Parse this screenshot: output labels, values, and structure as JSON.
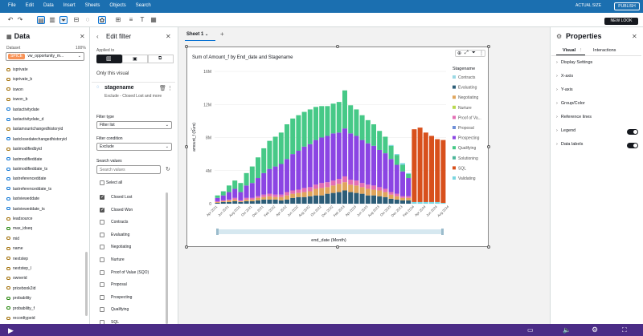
{
  "menu": [
    "File",
    "Edit",
    "Data",
    "Insert",
    "Sheets",
    "Objects",
    "Search"
  ],
  "topbar": {
    "actual_size": "ACTUAL SIZE",
    "publish": "PUBLISH",
    "new_look": "NEW LOOK"
  },
  "data_pane": {
    "title": "Data",
    "dataset_label": "Dataset",
    "dataset_pct": "100%",
    "dataset_chip": "SPICE",
    "dataset_name": "vw_opportunity_m...",
    "fields": [
      "isprivate",
      "isprivate_b",
      "iswon",
      "iswon_b",
      "lastactivitydate",
      "lastactivitydate_d",
      "lastamountchangedhistoryid",
      "lastclosedatechangedhistoryid",
      "lastmodifiedbyid",
      "lastmodifieddate",
      "lastmodifieddate_ts",
      "lastreferenceddate",
      "lastreferenceddate_ts",
      "lastvieweddate",
      "lastvieweddate_ts",
      "leadsource",
      "max_idseq",
      "mid",
      "name",
      "nextstep",
      "nextstep_l",
      "ownerid",
      "pricebook2id",
      "probability",
      "probability_f",
      "recordtypeid"
    ]
  },
  "filter_pane": {
    "title": "Edit filter",
    "applied_to": "Applied to",
    "only_visual": "Only this visual",
    "filter_field": "stagename",
    "filter_desc": "Exclude - Closed Lost and more",
    "filter_type_label": "Filter type",
    "filter_type": "Filter list",
    "filter_condition_label": "Filter condition",
    "filter_condition": "Exclude",
    "search_values_label": "Search values",
    "search_placeholder": "Search values",
    "select_all": "Select all",
    "values": [
      {
        "label": "Closed Lost",
        "checked": true
      },
      {
        "label": "Closed Won",
        "checked": true
      },
      {
        "label": "Contracts",
        "checked": false
      },
      {
        "label": "Evaluating",
        "checked": false
      },
      {
        "label": "Negotiating",
        "checked": false
      },
      {
        "label": "Nurture",
        "checked": false
      },
      {
        "label": "Proof of Value (SQO)",
        "checked": false
      },
      {
        "label": "Proposal",
        "checked": false
      },
      {
        "label": "Prospecting",
        "checked": false
      },
      {
        "label": "Qualifying",
        "checked": false
      },
      {
        "label": "SQL",
        "checked": false
      }
    ]
  },
  "sheet": {
    "tab": "Sheet 1",
    "add": "+"
  },
  "properties": {
    "title": "Properties",
    "tabs": [
      "Visual",
      "Interactions"
    ],
    "sections": [
      "Display Settings",
      "X-axis",
      "Y-axis",
      "Group/Color",
      "Reference lines",
      "Legend",
      "Data labels"
    ]
  },
  "colors": {
    "Contracts": "#9ad8e4",
    "Evaluating": "#2c5d78",
    "Negotiating": "#e0a55c",
    "Nurture": "#b9d84e",
    "Proof of Value (SQO)": "#e36eb4",
    "Proposal": "#6f8fd8",
    "Prospecting": "#8b45e3",
    "Qualifying": "#46c987",
    "SQL": "#d8501c",
    "Validating": "#7ad6e0"
  },
  "chart_data": {
    "type": "bar",
    "stacked": true,
    "title": "Sum of Amount_f by End_date and Stagename",
    "xlabel": "end_date (Month)",
    "ylabel": "amount_f (Sum)",
    "ylim": [
      0,
      16000000
    ],
    "yticks": [
      "0",
      "4M",
      "8M",
      "12M",
      "16M"
    ],
    "legend_title": "Stagename",
    "legend": [
      "Contracts",
      "Evaluating",
      "Negotiating",
      "Nurture",
      "Proof of Va...",
      "Proposal",
      "Prospecting",
      "Qualifying",
      "Solutioning",
      "SQL",
      "Validating"
    ],
    "xtick_labels": [
      "Apr 2021",
      "Jun 2021",
      "Aug 2021",
      "Oct 2021",
      "Dec 2021",
      "Feb 2022",
      "Apr 2022",
      "Jun 2022",
      "Aug 2022",
      "Oct 2022",
      "Dec 2022",
      "Feb 2023",
      "Apr 2023",
      "Jun 2023",
      "Aug 2023",
      "Oct 2023",
      "Dec 2023",
      "Feb 2024",
      "Apr 2024",
      "Jun 2024",
      "Aug 2024"
    ],
    "series": [
      {
        "name": "Evaluating",
        "values": [
          0.1,
          0.2,
          0.2,
          0.3,
          0.2,
          0.3,
          0.3,
          0.4,
          0.5,
          0.5,
          0.5,
          0.4,
          0.5,
          0.7,
          0.8,
          0.8,
          0.9,
          1.0,
          1.0,
          1.2,
          1.3,
          1.4,
          1.6,
          1.4,
          1.3,
          1.2,
          1.0,
          1.0,
          0.9,
          0.8,
          0.6,
          0.5,
          0.4,
          0.4,
          0,
          0,
          0,
          0,
          0,
          0
        ]
      },
      {
        "name": "Negotiating",
        "values": [
          0.1,
          0.1,
          0.2,
          0.2,
          0.1,
          0.2,
          0.2,
          0.3,
          0.3,
          0.4,
          0.3,
          0.4,
          0.5,
          0.5,
          0.5,
          0.6,
          0.6,
          0.8,
          0.9,
          0.8,
          0.9,
          1.0,
          1.0,
          0.9,
          0.9,
          0.8,
          0.8,
          0.7,
          0.7,
          0.6,
          0.5,
          0.4,
          0.3,
          0.3,
          0,
          0,
          0,
          0,
          0,
          0
        ]
      },
      {
        "name": "Proof of Value (SQO)",
        "values": [
          0.1,
          0.1,
          0.1,
          0.2,
          0.1,
          0.2,
          0.2,
          0.2,
          0.3,
          0.3,
          0.3,
          0.3,
          0.4,
          0.4,
          0.4,
          0.5,
          0.5,
          0.5,
          0.6,
          0.6,
          0.6,
          0.6,
          0.7,
          0.6,
          0.6,
          0.5,
          0.5,
          0.5,
          0.4,
          0.4,
          0.3,
          0.3,
          0.2,
          0.2,
          0,
          0,
          0,
          0,
          0,
          0
        ]
      },
      {
        "name": "Prospecting",
        "values": [
          0.4,
          0.6,
          0.9,
          1.1,
          1.0,
          1.5,
          1.8,
          2.2,
          2.6,
          3.0,
          3.4,
          3.7,
          4.0,
          4.4,
          4.7,
          5.0,
          5.2,
          5.4,
          5.5,
          5.6,
          5.7,
          5.6,
          5.8,
          5.6,
          5.4,
          5.2,
          5.0,
          4.8,
          4.5,
          4.3,
          4.0,
          3.5,
          3.0,
          2.2,
          0,
          0,
          0,
          0,
          0,
          0
        ]
      },
      {
        "name": "Qualifying",
        "values": [
          0.3,
          0.5,
          0.8,
          1.0,
          1.1,
          1.5,
          2.0,
          2.5,
          3.0,
          3.4,
          3.6,
          3.8,
          4.2,
          4.3,
          4.3,
          4.2,
          4.2,
          4.0,
          3.8,
          3.6,
          3.6,
          3.7,
          4.6,
          3.4,
          3.2,
          3.0,
          2.8,
          2.6,
          2.3,
          2.0,
          1.6,
          1.2,
          0.8,
          0.5,
          0,
          0,
          0,
          0,
          0,
          0
        ]
      },
      {
        "name": "Validating",
        "values": [
          0,
          0,
          0,
          0,
          0,
          0,
          0,
          0,
          0,
          0,
          0,
          0,
          0,
          0,
          0,
          0,
          0,
          0,
          0,
          0,
          0,
          0,
          0,
          0,
          0,
          0,
          0,
          0,
          0,
          0,
          0.1,
          0.1,
          0.2,
          0.1,
          0.2,
          0.2,
          0.2,
          0.2,
          0.2,
          0.1
        ]
      },
      {
        "name": "SQL",
        "values": [
          0,
          0,
          0,
          0,
          0,
          0,
          0,
          0,
          0,
          0,
          0,
          0,
          0,
          0,
          0,
          0,
          0,
          0,
          0,
          0,
          0,
          0,
          0,
          0,
          0,
          0,
          0,
          0,
          0,
          0,
          0,
          0,
          0,
          0,
          8.8,
          9.0,
          8.4,
          8.0,
          7.6,
          7.6
        ]
      }
    ]
  }
}
